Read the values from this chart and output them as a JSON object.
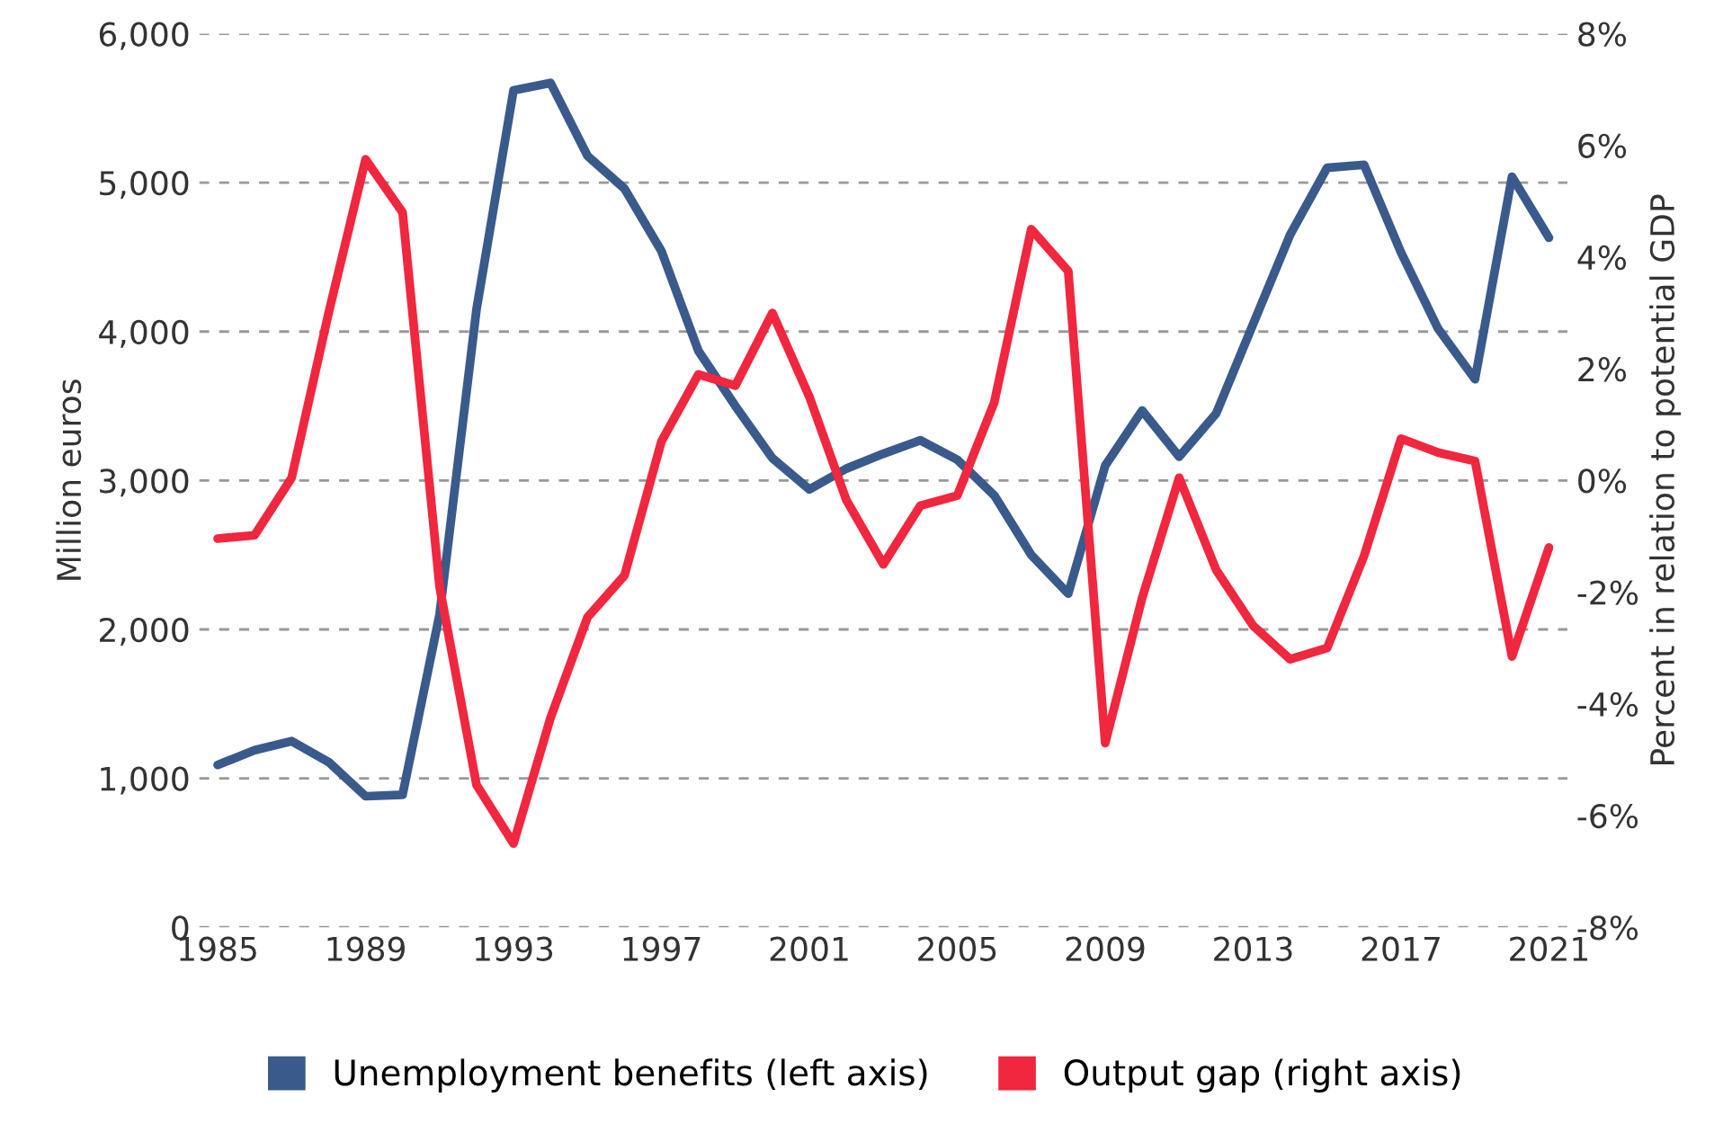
{
  "chart_data": {
    "type": "line",
    "x": [
      1985,
      1986,
      1987,
      1988,
      1989,
      1990,
      1991,
      1992,
      1993,
      1994,
      1995,
      1996,
      1997,
      1998,
      1999,
      2000,
      2001,
      2002,
      2003,
      2004,
      2005,
      2006,
      2007,
      2008,
      2009,
      2010,
      2011,
      2012,
      2013,
      2014,
      2015,
      2016,
      2017,
      2018,
      2019,
      2020,
      2021
    ],
    "series": [
      {
        "name": "Unemployment benefits (left axis)",
        "color": "#3a5a8c",
        "values": [
          1090,
          1190,
          1250,
          1110,
          880,
          890,
          2100,
          4150,
          5620,
          5670,
          5180,
          4960,
          4540,
          3870,
          3500,
          3150,
          2940,
          3080,
          3180,
          3270,
          3140,
          2900,
          2500,
          2240,
          3100,
          3470,
          3160,
          3450,
          4050,
          4650,
          5100,
          5120,
          4530,
          4020,
          3680,
          5040,
          4630
        ]
      },
      {
        "name": "Output gap (right axis)",
        "color": "#f0273f",
        "axis": "y2",
        "values": [
          -1.04,
          -0.98,
          0.05,
          3.0,
          5.75,
          4.8,
          -1.9,
          -5.45,
          -6.5,
          -4.25,
          -2.45,
          -1.7,
          0.7,
          1.9,
          1.7,
          3.0,
          1.5,
          -0.35,
          -1.5,
          -0.45,
          -0.27,
          1.4,
          4.5,
          3.75,
          -4.7,
          -2.1,
          0.05,
          -1.6,
          -2.6,
          -3.2,
          -3.0,
          -1.35,
          0.75,
          0.5,
          0.35,
          -3.15,
          -1.2
        ]
      }
    ],
    "ylabel": "Million euros",
    "y2label": "Percent in relation to potential GDP",
    "xlim": [
      1984.5,
      2021.5
    ],
    "xticks": [
      1985,
      1989,
      1993,
      1997,
      2001,
      2005,
      2009,
      2013,
      2017,
      2021
    ],
    "ylim": [
      0,
      6000
    ],
    "yticks": [
      {
        "value": 0,
        "label": "0"
      },
      {
        "value": 1000,
        "label": "1,000"
      },
      {
        "value": 2000,
        "label": "2,000"
      },
      {
        "value": 3000,
        "label": "3,000"
      },
      {
        "value": 4000,
        "label": "4,000"
      },
      {
        "value": 5000,
        "label": "5,000"
      },
      {
        "value": 6000,
        "label": "6,000"
      }
    ],
    "y2lim": [
      -8,
      8
    ],
    "y2ticks": [
      {
        "value": -8,
        "label": "-8%"
      },
      {
        "value": -6,
        "label": "-6%"
      },
      {
        "value": -4,
        "label": "-4%"
      },
      {
        "value": -2,
        "label": "-2%"
      },
      {
        "value": 0,
        "label": "0%"
      },
      {
        "value": 2,
        "label": "2%"
      },
      {
        "value": 4,
        "label": "4%"
      },
      {
        "value": 6,
        "label": "6%"
      },
      {
        "value": 8,
        "label": "8%"
      }
    ],
    "grid": "y",
    "legend": "bottom",
    "marker": "none",
    "line_style": "solid"
  }
}
